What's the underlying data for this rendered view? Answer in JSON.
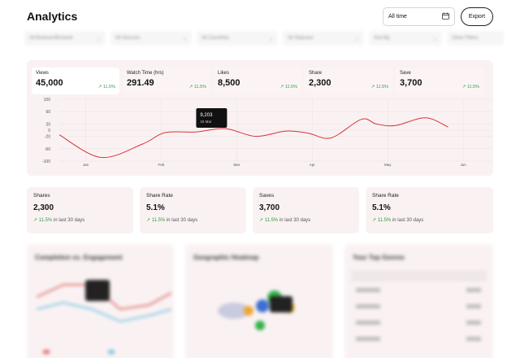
{
  "header": {
    "title": "Analytics",
    "date_range": "All time",
    "export_label": "Export"
  },
  "filters": [
    "All Browser/Browser",
    "All Sources",
    "All Countries",
    "All Statuses",
    "Sort By",
    "Clear Filters"
  ],
  "metrics": [
    {
      "label": "Views",
      "value": "45,000",
      "change": "11.5%"
    },
    {
      "label": "Watch Time (hrs)",
      "value": "291.49",
      "change": "11.5%"
    },
    {
      "label": "Likes",
      "value": "8,500",
      "change": "11.5%"
    },
    {
      "label": "Share",
      "value": "2,300",
      "change": "11.5%"
    },
    {
      "label": "Save",
      "value": "3,700",
      "change": "11.5%"
    }
  ],
  "chart_data": {
    "type": "line",
    "x": [
      "Jan",
      "Feb",
      "Mar",
      "Apr",
      "May",
      "Jun"
    ],
    "yticks": [
      100,
      60,
      20,
      0,
      -20,
      -60,
      -100
    ],
    "ylim": [
      -100,
      100
    ],
    "series": [
      {
        "color": "#d8323a",
        "points": [
          [
            0,
            -15
          ],
          [
            0.55,
            -88
          ],
          [
            1.1,
            -45
          ],
          [
            1.4,
            -8
          ],
          [
            1.8,
            -6
          ],
          [
            2.2,
            5
          ],
          [
            2.6,
            -20
          ],
          [
            3.0,
            -3
          ],
          [
            3.3,
            -10
          ],
          [
            3.6,
            -25
          ],
          [
            4.0,
            35
          ],
          [
            4.2,
            20
          ],
          [
            4.45,
            15
          ],
          [
            4.85,
            40
          ],
          [
            5.15,
            10
          ]
        ]
      }
    ],
    "tooltip": {
      "value": "9,203",
      "date": "15 Mar"
    },
    "grid": true
  },
  "stats": [
    {
      "label": "Shares",
      "value": "2,300",
      "change": "11.5%",
      "period": "in last 30 days"
    },
    {
      "label": "Share Rate",
      "value": "5.1%",
      "change": "11.5%",
      "period": "in last 30 days"
    },
    {
      "label": "Saves",
      "value": "3,700",
      "change": "11.5%",
      "period": "in last 30 days"
    },
    {
      "label": "Share Rate",
      "value": "5.1%",
      "change": "11.5%",
      "period": "in last 30 days"
    }
  ],
  "panels": [
    {
      "title": "Completion vs. Engagement"
    },
    {
      "title": "Geographic Heatmap"
    },
    {
      "title": "Your Top Genres"
    }
  ],
  "colors": {
    "accent_red": "#d8323a",
    "positive": "#2aa149",
    "card_bg": "#faf2f2"
  }
}
